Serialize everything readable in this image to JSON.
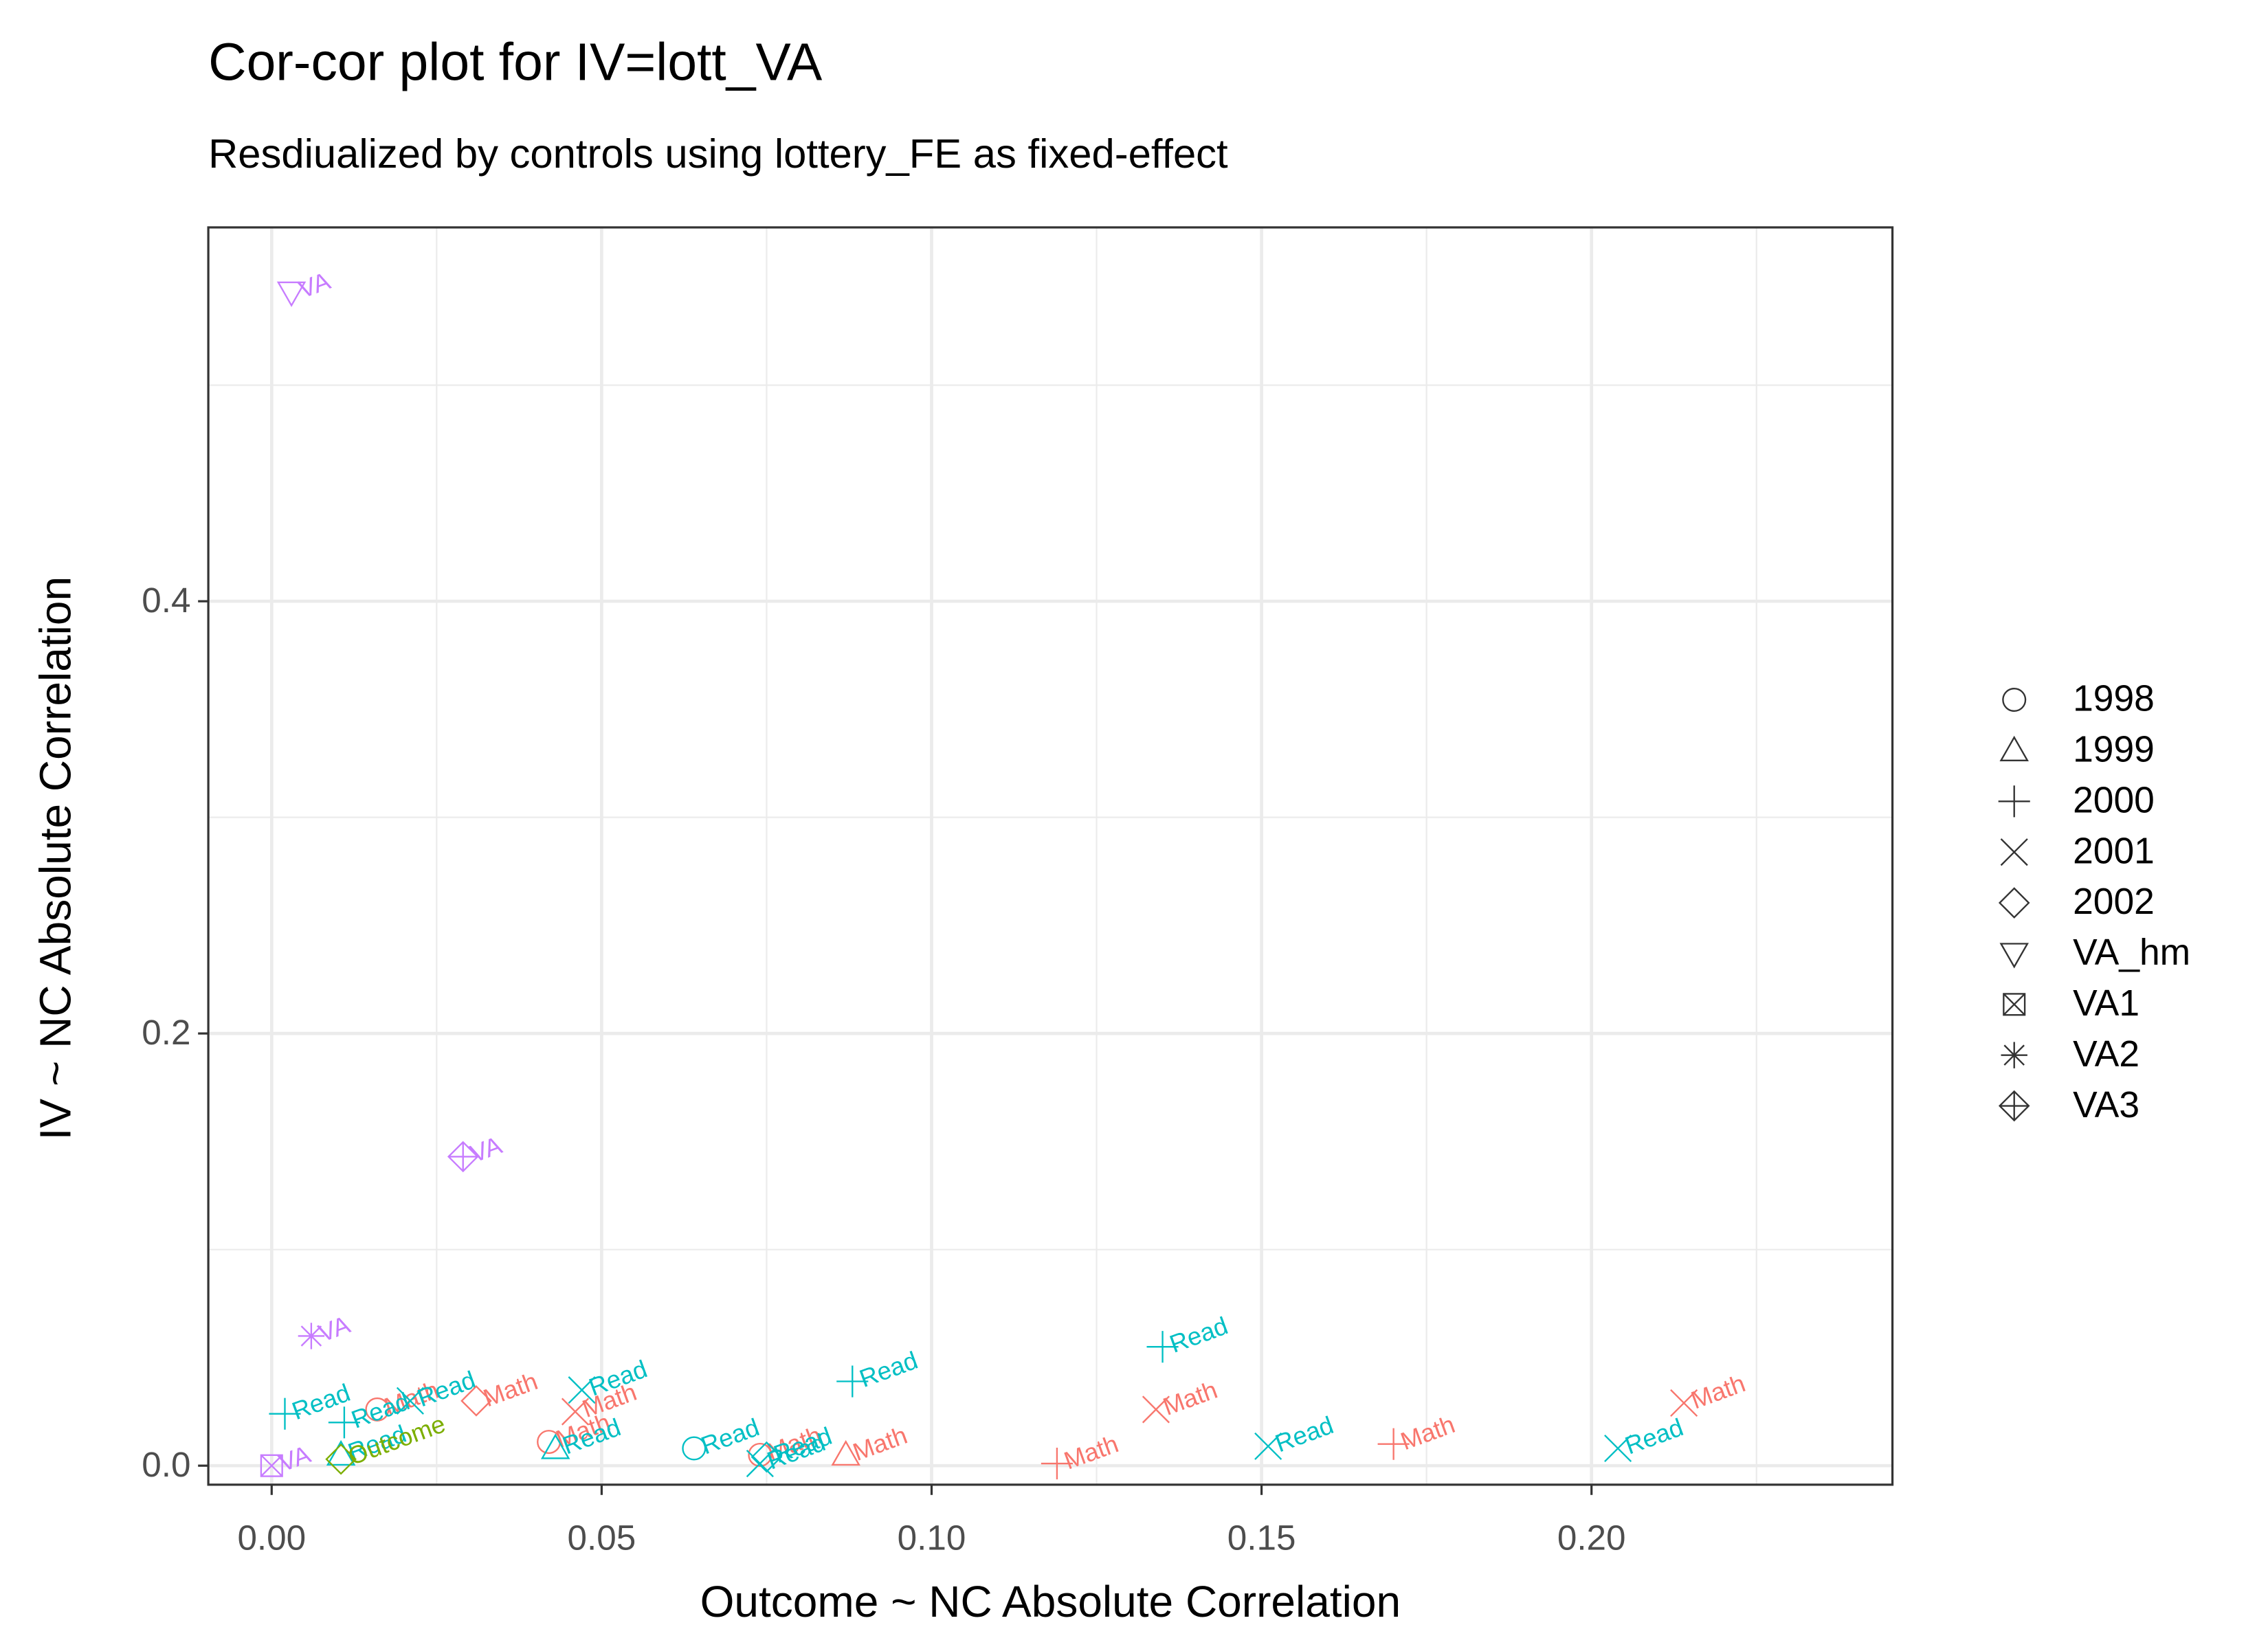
{
  "chart_data": {
    "type": "scatter",
    "title": "Cor-cor plot for IV=lott_VA",
    "subtitle": "Resdiualized by controls using lottery_FE as fixed-effect",
    "x_label": "Outcome ~ NC Absolute Correlation",
    "y_label": "IV ~ NC Absolute Correlation",
    "xlim": [
      -0.0096,
      0.2456
    ],
    "ylim": [
      -0.0088,
      0.573
    ],
    "xticks": [
      {
        "value": 0,
        "label": "0.00"
      },
      {
        "value": 0.05,
        "label": "0.05"
      },
      {
        "value": 0.1,
        "label": "0.10"
      },
      {
        "value": 0.15,
        "label": "0.15"
      },
      {
        "value": 0.2,
        "label": "0.20"
      }
    ],
    "yticks": [
      {
        "value": 0,
        "label": "0.0"
      },
      {
        "value": 0.2,
        "label": "0.2"
      },
      {
        "value": 0.4,
        "label": "0.4"
      }
    ],
    "x_minor_grid": [
      0.025,
      0.075,
      0.125,
      0.175,
      0.225
    ],
    "y_minor_grid": [
      0.1,
      0.3,
      0.5
    ],
    "grid": true,
    "series": [
      {
        "name": "1998",
        "shape": "circle",
        "x": [
          0.042,
          0.064,
          0.074,
          0.016
        ],
        "values": [
          0.011,
          0.008,
          0.005,
          0.026
        ],
        "labels": [
          "Math",
          "Read",
          "Math",
          "Math"
        ],
        "colors": [
          "#F8766D",
          "#00BFC4",
          "#F8766D",
          "#F8766D"
        ]
      },
      {
        "name": "1999",
        "shape": "triangle",
        "x": [
          0.043,
          0.087,
          0.0105
        ],
        "values": [
          0.008,
          0.005,
          0.005
        ],
        "labels": [
          "Read",
          "Math",
          "Read"
        ],
        "colors": [
          "#00BFC4",
          "#F8766D",
          "#00BFC4"
        ]
      },
      {
        "name": "2000",
        "shape": "plus",
        "x": [
          0.002,
          0.088,
          0.135,
          0.119,
          0.17,
          0.011
        ],
        "values": [
          0.024,
          0.039,
          0.055,
          0.001,
          0.01,
          0.02
        ],
        "labels": [
          "Read",
          "Read",
          "Read",
          "Math",
          "Math",
          "Read"
        ],
        "colors": [
          "#00BFC4",
          "#00BFC4",
          "#00BFC4",
          "#F8766D",
          "#F8766D",
          "#00BFC4"
        ]
      },
      {
        "name": "2001",
        "shape": "cross",
        "x": [
          0.214,
          0.204,
          0.151,
          0.134,
          0.047,
          0.046,
          0.074,
          0.021
        ],
        "values": [
          0.029,
          0.008,
          0.009,
          0.026,
          0.035,
          0.025,
          0.001,
          0.03
        ],
        "labels": [
          "Math",
          "Read",
          "Read",
          "Math",
          "Read",
          "Math",
          "Read",
          "Read"
        ],
        "colors": [
          "#F8766D",
          "#00BFC4",
          "#00BFC4",
          "#F8766D",
          "#00BFC4",
          "#F8766D",
          "#00BFC4",
          "#00BFC4"
        ]
      },
      {
        "name": "2002",
        "shape": "diamond",
        "x": [
          0.075,
          0.0105,
          0.031
        ],
        "values": [
          0.004,
          0.003,
          0.03
        ],
        "labels": [
          "Read",
          "Outcome",
          "Math"
        ],
        "colors": [
          "#00BFC4",
          "#7CAE00",
          "#F8766D"
        ]
      },
      {
        "name": "VA_hm",
        "shape": "triangle-down",
        "x": [
          0.003
        ],
        "values": [
          0.543
        ],
        "labels": [
          "VA"
        ],
        "colors": [
          "#C77CFF"
        ]
      },
      {
        "name": "VA1",
        "shape": "square-cross",
        "x": [
          0
        ],
        "values": [
          0
        ],
        "labels": [
          "VA"
        ],
        "colors": [
          "#C77CFF"
        ]
      },
      {
        "name": "VA2",
        "shape": "asterisk",
        "x": [
          0.006
        ],
        "values": [
          0.06
        ],
        "labels": [
          "VA"
        ],
        "colors": [
          "#C77CFF"
        ]
      },
      {
        "name": "VA3",
        "shape": "diamond-plus",
        "x": [
          0.029
        ],
        "values": [
          0.143
        ],
        "labels": [
          "VA"
        ],
        "colors": [
          "#C77CFF"
        ]
      }
    ]
  }
}
